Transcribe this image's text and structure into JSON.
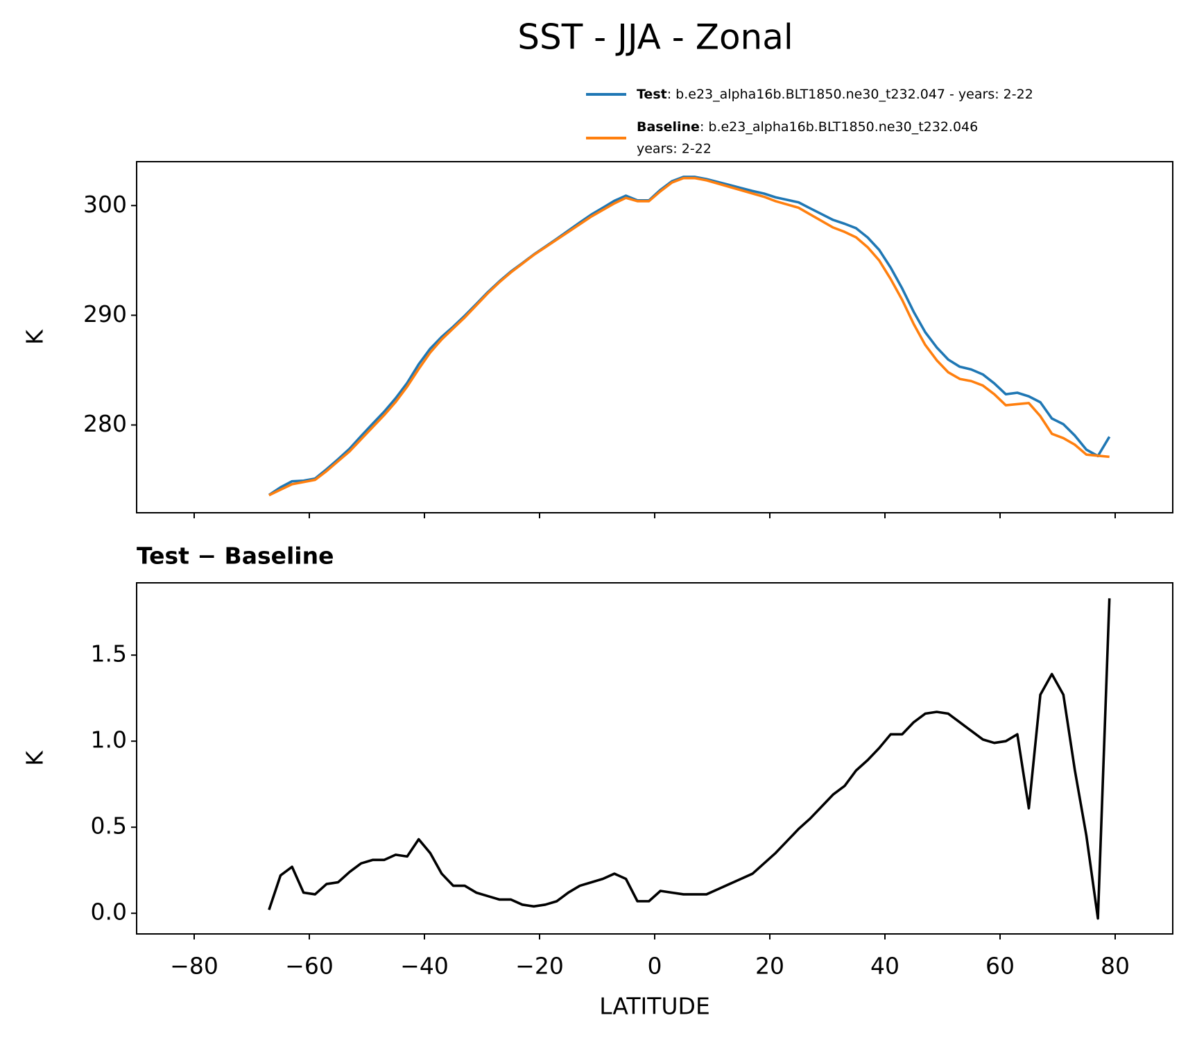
{
  "title": "SST - JJA - Zonal",
  "chart_data": [
    {
      "type": "line",
      "ylabel": "K",
      "xlim": [
        -90,
        90
      ],
      "ylim": [
        272,
        304
      ],
      "yticks": [
        280,
        290,
        300
      ],
      "x": [
        -67,
        -65,
        -63,
        -61,
        -59,
        -57,
        -55,
        -53,
        -51,
        -49,
        -47,
        -45,
        -43,
        -41,
        -39,
        -37,
        -35,
        -33,
        -31,
        -29,
        -27,
        -25,
        -23,
        -21,
        -19,
        -17,
        -15,
        -13,
        -11,
        -9,
        -7,
        -5,
        -3,
        -1,
        1,
        3,
        5,
        7,
        9,
        11,
        13,
        15,
        17,
        19,
        21,
        23,
        25,
        27,
        29,
        31,
        33,
        35,
        37,
        39,
        41,
        43,
        45,
        47,
        49,
        51,
        53,
        55,
        57,
        59,
        61,
        63,
        65,
        67,
        69,
        71,
        73,
        75,
        77,
        79
      ],
      "series": [
        {
          "name": "Test",
          "description": [
            ": b.e23_alpha16b.BLT1850.ne30_t232.047 - years: 2-22"
          ],
          "color": "#1f77b4",
          "values": [
            273.62,
            274.32,
            274.87,
            274.92,
            275.11,
            275.97,
            276.88,
            277.84,
            278.99,
            280.11,
            281.21,
            282.44,
            283.83,
            285.53,
            286.95,
            288.03,
            288.96,
            289.96,
            291.02,
            292.1,
            293.08,
            293.98,
            294.75,
            295.54,
            296.25,
            296.97,
            297.72,
            298.46,
            299.18,
            299.8,
            300.43,
            300.9,
            300.47,
            300.47,
            301.43,
            302.22,
            302.61,
            302.61,
            302.41,
            302.14,
            301.87,
            301.6,
            301.33,
            301.09,
            300.75,
            300.52,
            300.29,
            299.75,
            299.22,
            298.69,
            298.34,
            297.93,
            297.09,
            295.96,
            294.34,
            292.44,
            290.31,
            288.46,
            287.07,
            285.96,
            285.31,
            285.06,
            284.61,
            283.79,
            282.8,
            282.94,
            282.61,
            282.07,
            280.59,
            280.07,
            279.03,
            277.75,
            277.17,
            278.93
          ]
        },
        {
          "name": "Baseline",
          "description": [
            ": b.e23_alpha16b.BLT1850.ne30_t232.046",
            "years: 2-22"
          ],
          "color": "#ff7f0e",
          "values": [
            273.6,
            274.1,
            274.6,
            274.8,
            275.0,
            275.8,
            276.7,
            277.6,
            278.7,
            279.8,
            280.9,
            282.1,
            283.5,
            285.1,
            286.6,
            287.8,
            288.8,
            289.8,
            290.9,
            292.0,
            293.0,
            293.9,
            294.7,
            295.5,
            296.2,
            296.9,
            297.6,
            298.3,
            299.0,
            299.6,
            300.2,
            300.7,
            300.4,
            300.4,
            301.3,
            302.1,
            302.5,
            302.5,
            302.3,
            302.0,
            301.7,
            301.4,
            301.1,
            300.8,
            300.4,
            300.1,
            299.8,
            299.2,
            298.6,
            298.0,
            297.6,
            297.1,
            296.2,
            295.0,
            293.3,
            291.4,
            289.2,
            287.3,
            285.9,
            284.8,
            284.2,
            284.0,
            283.6,
            282.8,
            281.8,
            281.9,
            282.0,
            280.8,
            279.2,
            278.8,
            278.2,
            277.3,
            277.2,
            277.1
          ]
        }
      ]
    },
    {
      "type": "line",
      "title": "Test − Baseline",
      "xlabel": "LATITUDE",
      "ylabel": "K",
      "xlim": [
        -90,
        90
      ],
      "xticks": [
        {
          "value": -80,
          "label": "−80"
        },
        {
          "value": -60,
          "label": "−60"
        },
        {
          "value": -40,
          "label": "−40"
        },
        {
          "value": -20,
          "label": "−20"
        },
        0,
        20,
        40,
        60,
        80
      ],
      "ylim": [
        -0.12,
        1.92
      ],
      "yticks": [
        {
          "value": 0,
          "label": "0.0"
        },
        {
          "value": 0.5,
          "label": "0.5"
        },
        {
          "value": 1,
          "label": "1.0"
        },
        {
          "value": 1.5,
          "label": "1.5"
        }
      ],
      "x": [
        -67,
        -65,
        -63,
        -61,
        -59,
        -57,
        -55,
        -53,
        -51,
        -49,
        -47,
        -45,
        -43,
        -41,
        -39,
        -37,
        -35,
        -33,
        -31,
        -29,
        -27,
        -25,
        -23,
        -21,
        -19,
        -17,
        -15,
        -13,
        -11,
        -9,
        -7,
        -5,
        -3,
        -1,
        1,
        3,
        5,
        7,
        9,
        11,
        13,
        15,
        17,
        19,
        21,
        23,
        25,
        27,
        29,
        31,
        33,
        35,
        37,
        39,
        41,
        43,
        45,
        47,
        49,
        51,
        53,
        55,
        57,
        59,
        61,
        63,
        65,
        67,
        69,
        71,
        73,
        75,
        77,
        79
      ],
      "series": [
        {
          "color": "#000000",
          "values": [
            0.02,
            0.22,
            0.27,
            0.12,
            0.11,
            0.17,
            0.18,
            0.24,
            0.29,
            0.31,
            0.31,
            0.34,
            0.33,
            0.43,
            0.35,
            0.23,
            0.16,
            0.16,
            0.12,
            0.1,
            0.08,
            0.08,
            0.05,
            0.04,
            0.05,
            0.07,
            0.12,
            0.16,
            0.18,
            0.2,
            0.23,
            0.2,
            0.07,
            0.07,
            0.13,
            0.12,
            0.11,
            0.11,
            0.11,
            0.14,
            0.17,
            0.2,
            0.23,
            0.29,
            0.35,
            0.42,
            0.49,
            0.55,
            0.62,
            0.69,
            0.74,
            0.83,
            0.89,
            0.96,
            1.04,
            1.04,
            1.11,
            1.16,
            1.17,
            1.16,
            1.11,
            1.06,
            1.01,
            0.99,
            1.0,
            1.04,
            0.61,
            1.27,
            1.39,
            1.27,
            0.83,
            0.45,
            -0.03,
            1.83
          ]
        }
      ]
    }
  ]
}
